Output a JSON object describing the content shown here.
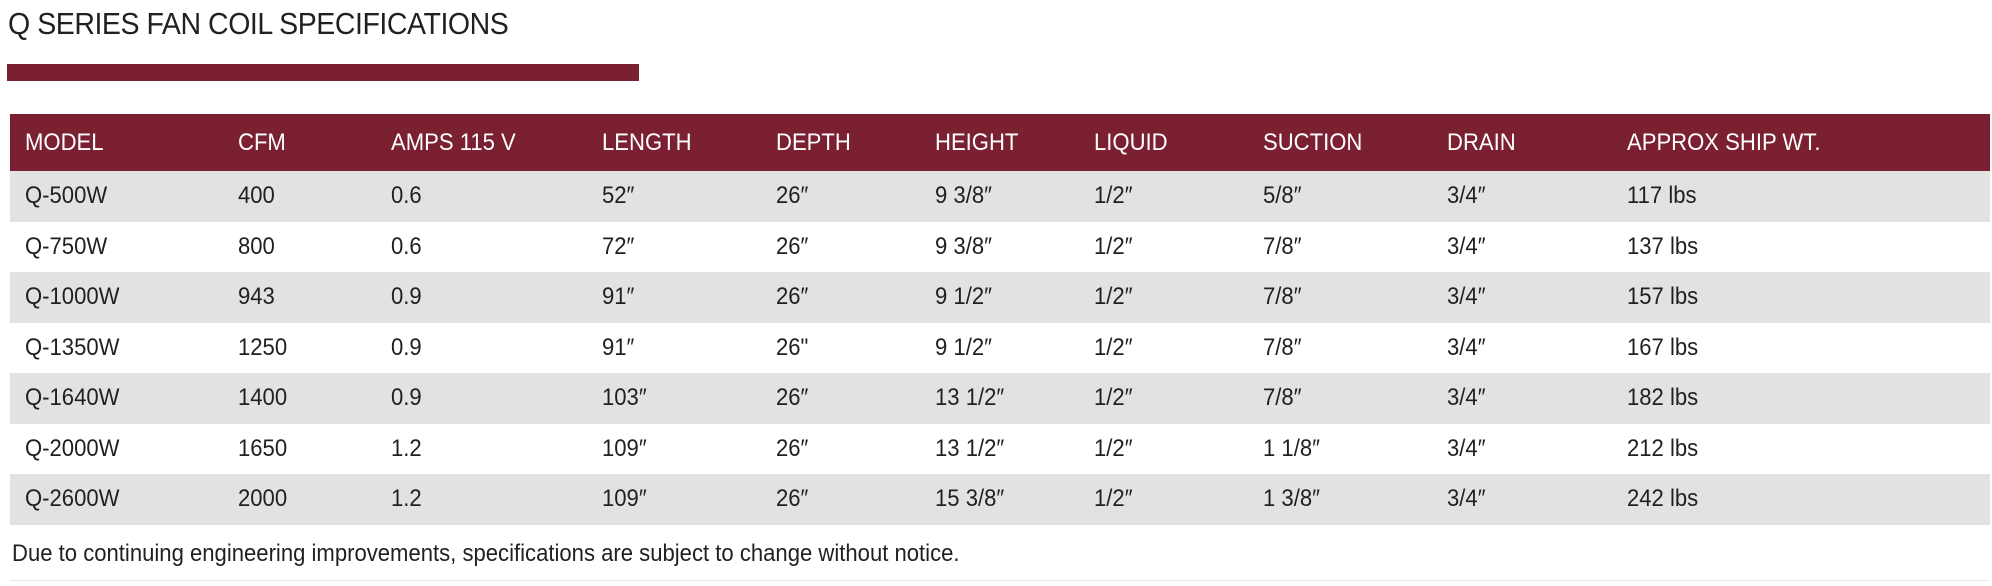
{
  "title": "Q SERIES FAN COIL SPECIFICATIONS",
  "colors": {
    "accent": "#7a2030",
    "row_alt": "#e2e2e2"
  },
  "table": {
    "headers": [
      "MODEL",
      "CFM",
      "AMPS 115 V",
      "LENGTH",
      "DEPTH",
      "HEIGHT",
      "LIQUID",
      "SUCTION",
      "DRAIN",
      "APPROX SHIP WT."
    ],
    "rows": [
      [
        "Q-500W",
        "400",
        "0.6",
        "52″",
        "26″",
        "9 3/8″",
        "1/2″",
        "5/8″",
        "3/4″",
        "117 lbs"
      ],
      [
        "Q-750W",
        "800",
        "0.6",
        "72″",
        "26″",
        "9 3/8″",
        "1/2″",
        "7/8″",
        "3/4″",
        "137 lbs"
      ],
      [
        "Q-1000W",
        "943",
        "0.9",
        "91″",
        "26″",
        "9 1/2″",
        "1/2″",
        "7/8″",
        "3/4″",
        "157 lbs"
      ],
      [
        "Q-1350W",
        "1250",
        "0.9",
        "91″",
        "26\"",
        "9 1/2″",
        "1/2″",
        "7/8″",
        "3/4″",
        "167 lbs"
      ],
      [
        "Q-1640W",
        "1400",
        "0.9",
        "103″",
        "26″",
        "13 1/2″",
        "1/2″",
        "7/8″",
        "3/4″",
        "182 lbs"
      ],
      [
        "Q-2000W",
        "1650",
        "1.2",
        "109″",
        "26″",
        "13 1/2″",
        "1/2″",
        "1 1/8″",
        "3/4″",
        "212 lbs"
      ],
      [
        "Q-2600W",
        "2000",
        "1.2",
        "109″",
        "26″",
        "15 3/8″",
        "1/2″",
        "1 3/8″",
        "3/4″",
        "242 lbs"
      ]
    ]
  },
  "footnote": "Due to continuing engineering improvements, specifications are subject to change without notice."
}
